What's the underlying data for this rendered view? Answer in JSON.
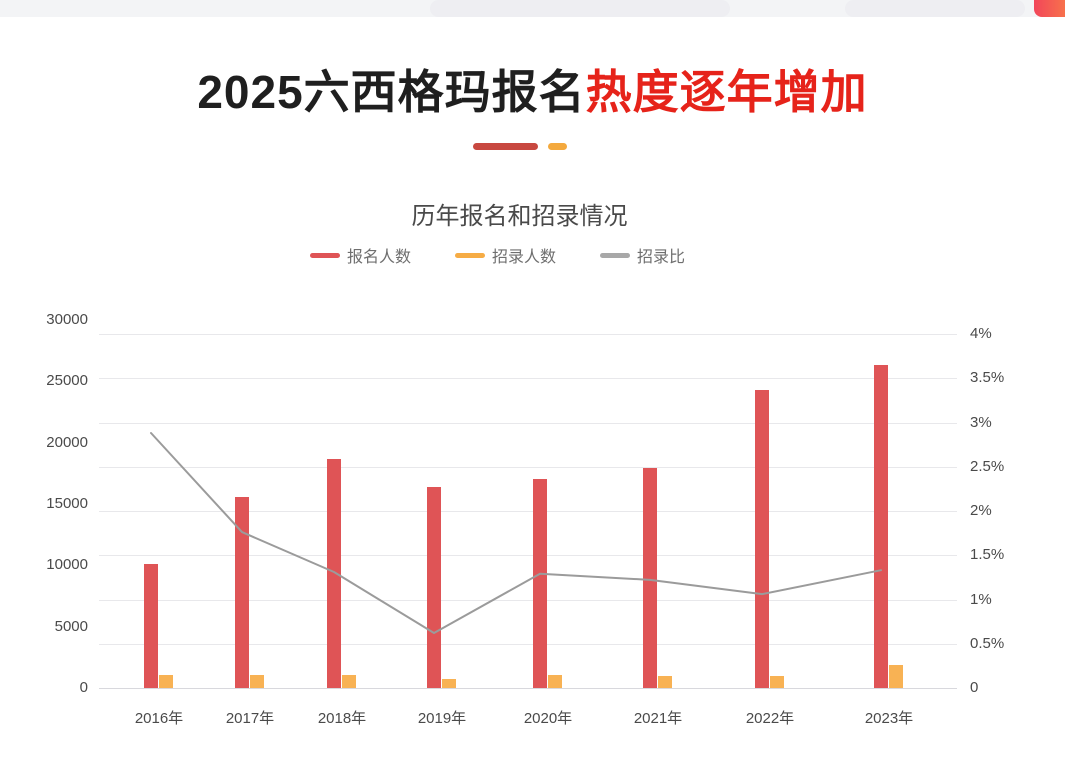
{
  "header": {
    "promo_button_gradient": [
      "#f2465a",
      "#f7714c"
    ]
  },
  "title": {
    "black_part": "2025六西格玛报名",
    "red_part": "热度逐年增加",
    "red_text_color": "#e6231a",
    "underline_red_color": "#c84840",
    "underline_orange_color": "#f4a93d"
  },
  "chart_data": {
    "type": "bar+line",
    "title": "历年报名和招录情况",
    "categories": [
      "2016年",
      "2017年",
      "2018年",
      "2019年",
      "2020年",
      "2021年",
      "2022年",
      "2023年"
    ],
    "series": [
      {
        "name": "报名人数",
        "type": "bar",
        "axis": "left",
        "color": "#df5456",
        "values": [
          10100,
          15600,
          18700,
          16400,
          17000,
          17900,
          24300,
          26300
        ]
      },
      {
        "name": "招录人数",
        "type": "bar",
        "axis": "left",
        "color": "#f8b254",
        "values": [
          1050,
          1050,
          1050,
          750,
          1050,
          1000,
          950,
          1900
        ]
      },
      {
        "name": "招录比",
        "type": "line",
        "axis": "right",
        "color": "#9b9b9b",
        "values_percent": [
          2.87,
          1.75,
          1.3,
          0.61,
          1.28,
          1.21,
          1.05,
          1.32
        ]
      }
    ],
    "left_axis": {
      "min": 0,
      "max": 30000,
      "ticks": [
        "30000",
        "25000",
        "20000",
        "15000",
        "10000",
        "5000",
        "0"
      ]
    },
    "right_axis": {
      "min": 0,
      "max": 4,
      "unit": "%",
      "ticks": [
        "4%",
        "3.5%",
        "3%",
        "2.5%",
        "2%",
        "1.5%",
        "1%",
        "0.5%",
        "0"
      ]
    },
    "legend": {
      "position": "top",
      "items": [
        {
          "label": "报名人数",
          "color": "#df5456"
        },
        {
          "label": "招录人数",
          "color": "#f6ac45"
        },
        {
          "label": "招录比",
          "color": "#a8a8a8"
        }
      ]
    },
    "grid": true
  }
}
